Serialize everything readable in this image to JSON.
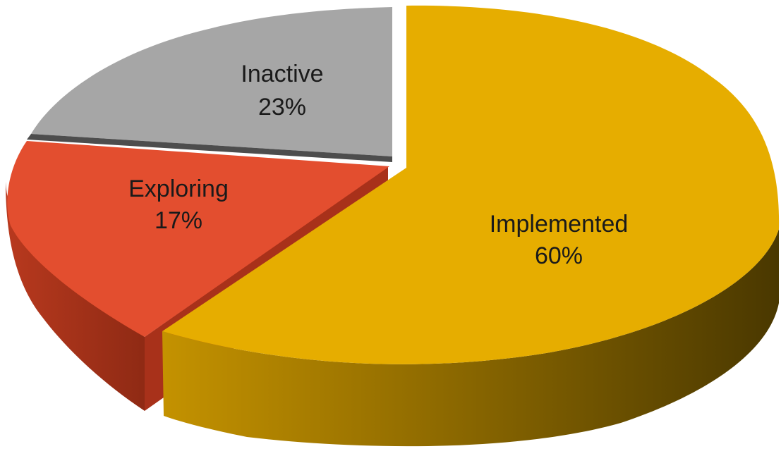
{
  "chart_data": {
    "type": "pie",
    "style": "3d-exploded",
    "slices": [
      {
        "label": "Implemented",
        "value": 60,
        "value_label": "60%",
        "color": "#E6AD00",
        "exploded": false
      },
      {
        "label": "Exploring",
        "value": 17,
        "value_label": "17%",
        "color": "#E34E2F",
        "exploded": false
      },
      {
        "label": "Inactive",
        "value": 23,
        "value_label": "23%",
        "color": "#A6A6A6",
        "exploded": false
      }
    ]
  }
}
